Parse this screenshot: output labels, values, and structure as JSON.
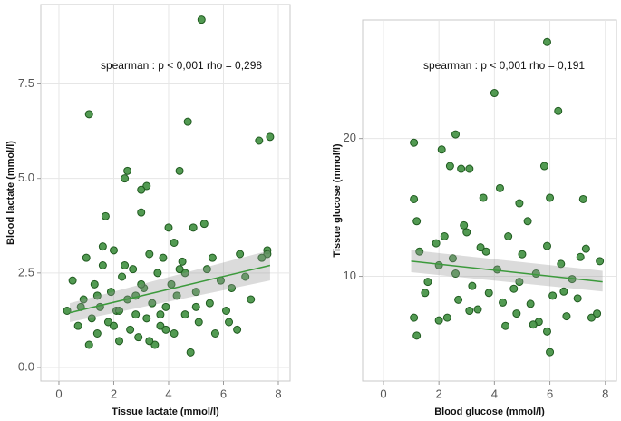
{
  "chart_data": [
    {
      "type": "scatter",
      "annotation": "spearman : p < 0,001 rho = 0,298",
      "xlabel": "Tissue lactate (mmol/l)",
      "ylabel": "Blood lactate (mmol/l)",
      "color": "#3f8f3f",
      "grid": true,
      "xlim": [
        -0.66,
        8.43
      ],
      "ylim": [
        -0.36,
        9.6
      ],
      "xticks": [
        0,
        2,
        4,
        6,
        8
      ],
      "yticks": [
        {
          "value": 0,
          "label": "0.0"
        },
        {
          "value": 2.5,
          "label": "2.5"
        },
        {
          "value": 5,
          "label": "5.0"
        },
        {
          "value": 7.5,
          "label": "7.5"
        }
      ],
      "x": [
        5.2,
        1.1,
        4.7,
        7.7,
        7.3,
        4.4,
        2.5,
        2.4,
        3.2,
        3.0,
        1.7,
        3.0,
        5.3,
        7.6,
        7.6,
        6.6,
        4.9,
        4.0,
        0.3,
        0.5,
        0.7,
        0.9,
        1.0,
        1.2,
        1.3,
        1.4,
        1.5,
        1.6,
        1.8,
        1.9,
        2.0,
        2.1,
        2.2,
        2.3,
        2.5,
        2.6,
        2.7,
        2.8,
        2.9,
        3.1,
        3.2,
        3.3,
        3.4,
        3.5,
        3.6,
        3.7,
        3.8,
        3.9,
        4.1,
        4.2,
        4.3,
        4.5,
        4.6,
        4.8,
        5.0,
        5.1,
        5.4,
        5.5,
        5.7,
        5.9,
        6.1,
        6.3,
        6.5,
        6.8,
        7.0,
        7.4,
        0.8,
        1.1,
        1.6,
        2.0,
        2.4,
        2.8,
        3.3,
        3.7,
        4.2,
        4.6,
        5.0,
        5.6,
        6.2,
        1.4,
        2.2,
        3.0,
        3.9,
        4.4
      ],
      "y": [
        9.2,
        6.7,
        6.5,
        6.1,
        6.0,
        5.2,
        5.2,
        5.0,
        4.8,
        4.7,
        4.0,
        4.1,
        3.8,
        3.1,
        3.0,
        3.0,
        3.7,
        3.7,
        1.5,
        2.3,
        1.1,
        1.8,
        2.9,
        1.3,
        2.2,
        0.9,
        1.6,
        2.7,
        1.2,
        2.0,
        3.1,
        1.5,
        0.7,
        2.4,
        1.8,
        1.0,
        2.6,
        1.4,
        0.8,
        2.1,
        1.3,
        3.0,
        1.7,
        0.6,
        2.5,
        1.1,
        2.9,
        1.6,
        2.2,
        0.9,
        1.9,
        2.8,
        1.4,
        0.4,
        2.0,
        1.2,
        2.6,
        1.7,
        0.9,
        2.3,
        1.5,
        2.1,
        1.0,
        2.4,
        1.8,
        2.9,
        1.6,
        0.6,
        3.2,
        1.1,
        2.7,
        1.9,
        0.7,
        1.4,
        3.3,
        2.5,
        1.6,
        2.9,
        1.2,
        1.9,
        1.5,
        2.2,
        1.0,
        2.6
      ],
      "fit_x": [
        0.4,
        7.7
      ],
      "fit_y": [
        1.45,
        2.7
      ],
      "band_lower": [
        1.2,
        2.3
      ],
      "band_upper": [
        1.7,
        3.1
      ]
    },
    {
      "type": "scatter",
      "annotation": "spearman : p < 0,001 rho = 0,191",
      "xlabel": "Blood glucose (mmol/l)",
      "ylabel": "Tissue glucose (mmol/l)",
      "color": "#3f8f3f",
      "grid": true,
      "xlim": [
        -0.75,
        8.4
      ],
      "ylim": [
        2.4,
        28.6
      ],
      "xticks": [
        0,
        2,
        4,
        6,
        8
      ],
      "yticks": [
        10,
        20
      ],
      "x": [
        5.9,
        4.0,
        6.3,
        1.1,
        2.6,
        2.1,
        5.8,
        2.4,
        2.8,
        3.1,
        1.1,
        4.2,
        3.6,
        6.0,
        1.2,
        7.2,
        4.9,
        5.2,
        3.0,
        2.2,
        1.3,
        1.6,
        1.9,
        2.0,
        2.3,
        2.5,
        2.7,
        2.9,
        3.2,
        3.4,
        3.5,
        3.8,
        4.1,
        4.4,
        4.5,
        4.7,
        4.8,
        5.0,
        5.3,
        5.5,
        5.6,
        5.9,
        6.1,
        6.4,
        6.6,
        6.8,
        7.0,
        7.3,
        7.5,
        7.8,
        1.1,
        1.5,
        2.0,
        2.6,
        3.1,
        3.7,
        4.3,
        4.9,
        5.4,
        6.0,
        6.5,
        7.1,
        7.7,
        5.9,
        1.2
      ],
      "y": [
        27.0,
        23.3,
        22.0,
        19.7,
        20.3,
        19.2,
        18.0,
        18.0,
        17.8,
        17.8,
        15.6,
        16.4,
        15.7,
        15.7,
        14.0,
        15.6,
        15.3,
        14.0,
        13.2,
        12.9,
        11.8,
        9.6,
        12.4,
        10.8,
        7.0,
        11.3,
        8.3,
        13.7,
        9.3,
        7.6,
        12.1,
        8.8,
        10.5,
        6.4,
        12.9,
        9.1,
        7.3,
        11.6,
        8.0,
        10.2,
        6.7,
        12.2,
        8.6,
        10.9,
        7.1,
        9.8,
        8.4,
        12.0,
        7.0,
        11.1,
        7.0,
        8.8,
        6.8,
        10.2,
        7.5,
        11.8,
        8.1,
        9.6,
        6.5,
        4.5,
        8.9,
        11.4,
        7.3,
        6.0,
        5.7
      ],
      "fit_x": [
        1.0,
        7.9
      ],
      "fit_y": [
        11.1,
        9.6
      ],
      "band_lower": [
        10.3,
        8.9
      ],
      "band_upper": [
        11.9,
        10.4
      ]
    }
  ]
}
